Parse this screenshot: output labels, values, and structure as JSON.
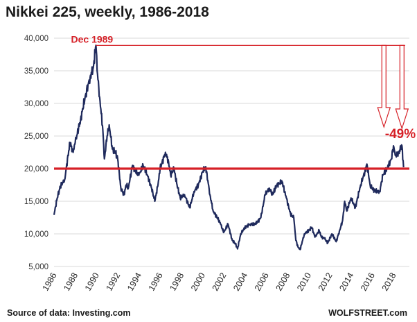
{
  "chart_data": {
    "type": "line",
    "title": "Nikkei 225, weekly, 1986-2018",
    "xlabel": "",
    "ylabel": "",
    "xlim": [
      1986,
      2019.5
    ],
    "ylim": [
      5000,
      40000
    ],
    "yticks": [
      5000,
      10000,
      15000,
      20000,
      25000,
      30000,
      35000,
      40000
    ],
    "ytick_labels": [
      "5,000",
      "10,000",
      "15,000",
      "20,000",
      "25,000",
      "30,000",
      "35,000",
      "40,000"
    ],
    "xticks": [
      1986,
      1988,
      1990,
      1992,
      1994,
      1996,
      1998,
      2000,
      2002,
      2004,
      2006,
      2008,
      2010,
      2012,
      2014,
      2016,
      2018
    ],
    "xtick_labels": [
      "1986",
      "1988",
      "1990",
      "1992",
      "1994",
      "1996",
      "1998",
      "2000",
      "2002",
      "2004",
      "2006",
      "2008",
      "2010",
      "2012",
      "2014",
      "2016",
      "2018"
    ],
    "grid": true,
    "series": [
      {
        "name": "Nikkei 225",
        "color": "#1f2a5c",
        "x": [
          1986.0,
          1986.3,
          1986.6,
          1987.0,
          1987.5,
          1987.8,
          1988.0,
          1988.5,
          1989.0,
          1989.4,
          1989.7,
          1989.95,
          1990.1,
          1990.3,
          1990.6,
          1990.75,
          1991.0,
          1991.2,
          1991.5,
          1991.8,
          1992.0,
          1992.3,
          1992.6,
          1992.8,
          1993.0,
          1993.4,
          1993.7,
          1994.0,
          1994.4,
          1994.8,
          1995.2,
          1995.5,
          1995.8,
          1996.0,
          1996.5,
          1996.8,
          1997.0,
          1997.3,
          1997.6,
          1997.9,
          1998.3,
          1998.8,
          1999.2,
          1999.6,
          2000.0,
          2000.3,
          2000.7,
          2001.0,
          2001.4,
          2001.7,
          2002.0,
          2002.4,
          2002.8,
          2003.1,
          2003.3,
          2003.6,
          2004.0,
          2004.5,
          2005.0,
          2005.5,
          2005.9,
          2006.3,
          2006.6,
          2007.0,
          2007.5,
          2007.9,
          2008.3,
          2008.6,
          2008.8,
          2009.0,
          2009.2,
          2009.6,
          2010.0,
          2010.3,
          2010.6,
          2011.0,
          2011.2,
          2011.5,
          2011.8,
          2012.2,
          2012.6,
          2012.9,
          2013.2,
          2013.4,
          2013.6,
          2014.0,
          2014.4,
          2014.9,
          2015.3,
          2015.5,
          2015.8,
          2016.0,
          2016.3,
          2016.7,
          2017.0,
          2017.4,
          2017.8,
          2018.0,
          2018.2,
          2018.5,
          2018.8,
          2018.95
        ],
        "values": [
          12900,
          15500,
          17300,
          18300,
          24000,
          22500,
          24000,
          27500,
          31500,
          34000,
          35500,
          38900,
          34500,
          31000,
          26000,
          21500,
          25000,
          26700,
          23000,
          22500,
          21500,
          17000,
          16000,
          17500,
          17000,
          20500,
          19500,
          19000,
          20500,
          19000,
          17000,
          15000,
          17500,
          20000,
          22500,
          21000,
          19000,
          20000,
          17500,
          15500,
          16000,
          14000,
          16500,
          17500,
          19500,
          20300,
          16000,
          13500,
          12500,
          11500,
          10200,
          11500,
          9000,
          8500,
          7700,
          10000,
          11000,
          11500,
          11500,
          12500,
          16000,
          17000,
          16000,
          17500,
          18000,
          15500,
          13000,
          12500,
          9000,
          8000,
          7600,
          10000,
          10500,
          11000,
          9500,
          10500,
          9500,
          9300,
          8600,
          10000,
          8800,
          10400,
          12000,
          15000,
          13500,
          15500,
          14000,
          17500,
          19500,
          20700,
          17500,
          17000,
          16500,
          16500,
          19000,
          20000,
          21500,
          23500,
          22000,
          22500,
          23500,
          20200
        ]
      }
    ],
    "annotations": {
      "peak_label": "Dec 1989",
      "change_label": "-49%",
      "reference_level": 20000,
      "peak_level": 38900,
      "line_color": "#d62027"
    }
  },
  "footer": {
    "source": "Source of data: Investing.com",
    "brand": "WOLFSTREET.com"
  }
}
